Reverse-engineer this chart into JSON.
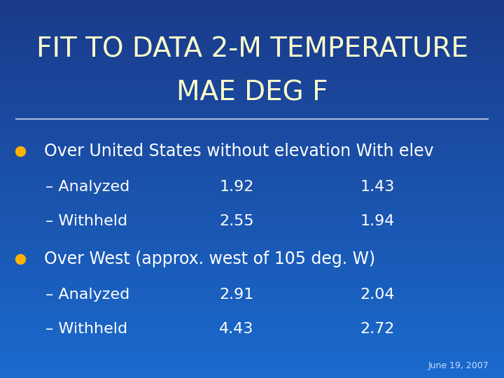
{
  "title_line1": "FIT TO DATA 2-M TEMPERATURE",
  "title_line2": "MAE DEG F",
  "title_color": "#FFFFCC",
  "title_fontsize": 28,
  "background_top": "#1a3a8a",
  "background_bottom": "#1a6acd",
  "bullet_color": "#FFB300",
  "text_color": "#FFFFFF",
  "bullet1_header": "Over United States without elevation With elev",
  "bullet1_rows": [
    [
      "– Analyzed",
      "1.92",
      "1.43"
    ],
    [
      "– Withheld",
      "2.55",
      "1.94"
    ]
  ],
  "bullet2_header": "Over West (approx. west of 105 deg. W)",
  "bullet2_rows": [
    [
      "– Analyzed",
      "2.91",
      "2.04"
    ],
    [
      "– Withheld",
      "4.43",
      "2.72"
    ]
  ],
  "date_text": "June 19, 2007",
  "date_color": "#CCDDFF",
  "date_fontsize": 9,
  "header_fontsize": 17,
  "row_fontsize": 16,
  "separator_color": "#AABBDD",
  "separator_linewidth": 1.5
}
